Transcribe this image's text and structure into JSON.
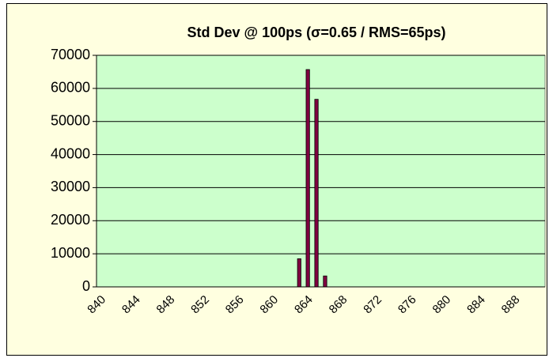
{
  "chart_data": {
    "type": "bar",
    "title": "Std Dev @ 100ps (σ=0.65 / RMS=65ps)",
    "categories": [
      "840",
      null,
      null,
      null,
      "844",
      null,
      null,
      null,
      "848",
      null,
      null,
      null,
      "852",
      null,
      null,
      null,
      "856",
      null,
      null,
      null,
      "860",
      null,
      null,
      null,
      "864",
      null,
      null,
      null,
      "868",
      null,
      null,
      null,
      "872",
      null,
      null,
      null,
      "876",
      null,
      null,
      null,
      "880",
      null,
      null,
      null,
      "884",
      null,
      null,
      null,
      "888",
      null,
      null,
      null
    ],
    "values": [
      0,
      0,
      0,
      0,
      0,
      0,
      0,
      0,
      0,
      0,
      0,
      0,
      0,
      0,
      0,
      0,
      0,
      0,
      0,
      0,
      0,
      0,
      0,
      8500,
      65700,
      56700,
      3300,
      0,
      0,
      0,
      0,
      0,
      0,
      0,
      0,
      0,
      0,
      0,
      0,
      0,
      0,
      0,
      0,
      0,
      0,
      0,
      0,
      0,
      0,
      0,
      0,
      0
    ],
    "color": "#800040",
    "ylim": [
      0,
      70000
    ],
    "yticks": [
      0,
      10000,
      20000,
      30000,
      40000,
      50000,
      60000,
      70000
    ],
    "grid": true
  }
}
